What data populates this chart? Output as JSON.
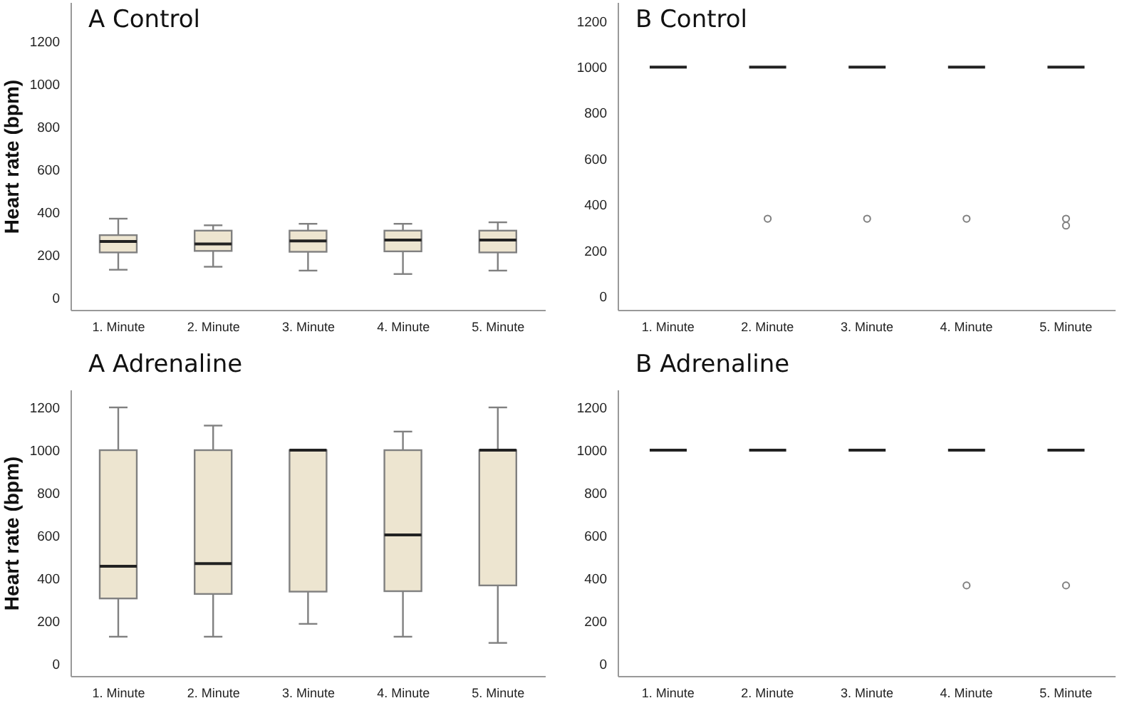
{
  "chart_data": [
    {
      "type": "box",
      "title": "A Control",
      "ylabel": "Heart rate (bpm)",
      "categories": [
        "1. Minute",
        "2. Minute",
        "3. Minute",
        "4. Minute",
        "5. Minute"
      ],
      "color": "#ede5d0",
      "ylim": [
        -60,
        1380
      ],
      "yticks": [
        0,
        200,
        400,
        600,
        800,
        1000,
        1200
      ],
      "grid": false,
      "boxes": [
        {
          "low": 131,
          "q1": 212,
          "median": 263,
          "q3": 293,
          "high": 370
        },
        {
          "low": 145,
          "q1": 219,
          "median": 252,
          "q3": 314,
          "high": 339
        },
        {
          "low": 127,
          "q1": 215,
          "median": 266,
          "q3": 314,
          "high": 346
        },
        {
          "low": 111,
          "q1": 217,
          "median": 270,
          "q3": 314,
          "high": 346
        },
        {
          "low": 127,
          "q1": 212,
          "median": 270,
          "q3": 314,
          "high": 353
        }
      ]
    },
    {
      "type": "box",
      "title": "B Control",
      "categories": [
        "1. Minute",
        "2. Minute",
        "3. Minute",
        "4. Minute",
        "5. Minute"
      ],
      "ylim": [
        -60,
        1280
      ],
      "yticks": [
        0,
        200,
        400,
        600,
        800,
        1000,
        1200
      ],
      "grid": false,
      "boxes": [
        {
          "low": 1000,
          "q1": 1000,
          "median": 1000,
          "q3": 1000,
          "high": 1000
        },
        {
          "low": 1000,
          "q1": 1000,
          "median": 1000,
          "q3": 1000,
          "high": 1000,
          "outliers": [
            340
          ]
        },
        {
          "low": 1000,
          "q1": 1000,
          "median": 1000,
          "q3": 1000,
          "high": 1000,
          "outliers": [
            340
          ]
        },
        {
          "low": 1000,
          "q1": 1000,
          "median": 1000,
          "q3": 1000,
          "high": 1000,
          "outliers": [
            340
          ]
        },
        {
          "low": 1000,
          "q1": 1000,
          "median": 1000,
          "q3": 1000,
          "high": 1000,
          "outliers": [
            340,
            310
          ]
        }
      ]
    },
    {
      "type": "box",
      "title": "A Adrenaline",
      "ylabel": "Heart rate (bpm)",
      "categories": [
        "1. Minute",
        "2. Minute",
        "3. Minute",
        "4. Minute",
        "5. Minute"
      ],
      "color": "#ede5d0",
      "ylim": [
        -60,
        1280
      ],
      "yticks": [
        0,
        200,
        400,
        600,
        800,
        1000,
        1200
      ],
      "grid": false,
      "boxes": [
        {
          "low": 127,
          "q1": 306,
          "median": 457,
          "q3": 1000,
          "high": 1200
        },
        {
          "low": 127,
          "q1": 327,
          "median": 469,
          "q3": 1000,
          "high": 1115
        },
        {
          "low": 187,
          "q1": 338,
          "median": 1000,
          "q3": 1000,
          "high": 1000
        },
        {
          "low": 127,
          "q1": 340,
          "median": 603,
          "q3": 1000,
          "high": 1087
        },
        {
          "low": 98,
          "q1": 367,
          "median": 1000,
          "q3": 1000,
          "high": 1200
        }
      ]
    },
    {
      "type": "box",
      "title": "B Adrenaline",
      "categories": [
        "1. Minute",
        "2. Minute",
        "3. Minute",
        "4. Minute",
        "5. Minute"
      ],
      "ylim": [
        -60,
        1280
      ],
      "yticks": [
        0,
        200,
        400,
        600,
        800,
        1000,
        1200
      ],
      "grid": false,
      "boxes": [
        {
          "low": 1000,
          "q1": 1000,
          "median": 1000,
          "q3": 1000,
          "high": 1000
        },
        {
          "low": 1000,
          "q1": 1000,
          "median": 1000,
          "q3": 1000,
          "high": 1000
        },
        {
          "low": 1000,
          "q1": 1000,
          "median": 1000,
          "q3": 1000,
          "high": 1000
        },
        {
          "low": 1000,
          "q1": 1000,
          "median": 1000,
          "q3": 1000,
          "high": 1000,
          "outliers": [
            367
          ]
        },
        {
          "low": 1000,
          "q1": 1000,
          "median": 1000,
          "q3": 1000,
          "high": 1000,
          "outliers": [
            367
          ]
        }
      ]
    }
  ]
}
